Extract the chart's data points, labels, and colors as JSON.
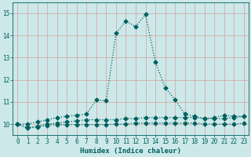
{
  "xlabel": "Humidex (Indice chaleur)",
  "bg_color": "#cce8e8",
  "grid_color_major": "#ddbbbb",
  "grid_color_minor": "#ddbbbb",
  "line_color": "#006060",
  "xlim": [
    -0.5,
    23.5
  ],
  "ylim": [
    9.5,
    15.5
  ],
  "yticks": [
    10,
    11,
    12,
    13,
    14,
    15
  ],
  "xticks": [
    0,
    1,
    2,
    3,
    4,
    5,
    6,
    7,
    8,
    9,
    10,
    11,
    12,
    13,
    14,
    15,
    16,
    17,
    18,
    19,
    20,
    21,
    22,
    23
  ],
  "series1_x": [
    0,
    1,
    2,
    3,
    4,
    5,
    6,
    7,
    8,
    9,
    10,
    11,
    12,
    13,
    14,
    15,
    16,
    17,
    18,
    19,
    20,
    21,
    22,
    23
  ],
  "series1_y": [
    10.0,
    10.0,
    10.1,
    10.2,
    10.3,
    10.35,
    10.4,
    10.45,
    11.1,
    11.05,
    14.1,
    14.65,
    14.4,
    14.95,
    12.8,
    11.65,
    11.1,
    10.45,
    10.35,
    10.25,
    10.3,
    10.4,
    10.35,
    10.35
  ],
  "series2_x": [
    0,
    1,
    2,
    3,
    4,
    5,
    6,
    7,
    8,
    9,
    10,
    11,
    12,
    13,
    14,
    15,
    16,
    17,
    18,
    19,
    20,
    21,
    22,
    23
  ],
  "series2_y": [
    10.0,
    9.85,
    9.9,
    10.0,
    10.05,
    10.1,
    10.15,
    10.2,
    10.2,
    10.2,
    10.2,
    10.25,
    10.25,
    10.3,
    10.3,
    10.3,
    10.3,
    10.3,
    10.3,
    10.25,
    10.25,
    10.25,
    10.3,
    10.35
  ],
  "series3_x": [
    0,
    1,
    2,
    3,
    4,
    5,
    6,
    7,
    8,
    9,
    10,
    11,
    12,
    13,
    14,
    15,
    16,
    17,
    18,
    19,
    20,
    21,
    22,
    23
  ],
  "series3_y": [
    10.0,
    9.82,
    9.87,
    9.95,
    9.98,
    9.98,
    9.98,
    9.98,
    9.98,
    9.98,
    10.0,
    10.0,
    10.05,
    10.05,
    10.05,
    10.05,
    10.05,
    10.05,
    10.05,
    10.0,
    10.0,
    10.0,
    10.0,
    10.05
  ],
  "markersize": 2.5,
  "linewidth": 0.9,
  "axis_fontsize": 6.5,
  "tick_fontsize": 5.5
}
